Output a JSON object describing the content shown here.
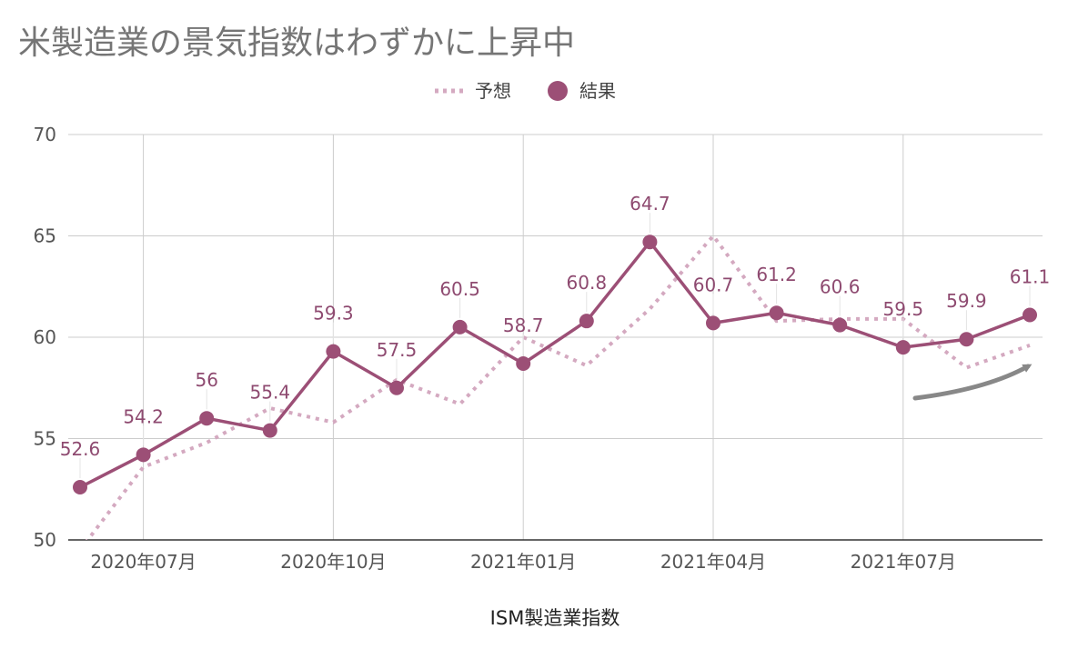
{
  "chart_data": {
    "type": "line",
    "title": "米製造業の景気指数はわずかに上昇中",
    "xlabel": "ISM製造業指数",
    "ylabel": "",
    "ylim": [
      50,
      70
    ],
    "yticks": [
      50,
      55,
      60,
      65,
      70
    ],
    "x_tick_labels": [
      "2020年07月",
      "2020年10月",
      "2021年01月",
      "2021年04月",
      "2021年07月"
    ],
    "x": [
      "2020-06",
      "2020-07",
      "2020-08",
      "2020-09",
      "2020-10",
      "2020-11",
      "2020-12",
      "2021-01",
      "2021-02",
      "2021-03",
      "2021-04",
      "2021-05",
      "2021-06",
      "2021-07",
      "2021-08",
      "2021-09"
    ],
    "grid": true,
    "legend_position": "top-center",
    "series": [
      {
        "name": "予想",
        "style": "dotted",
        "color": "#d4a9c0",
        "values": [
          49.5,
          53.6,
          54.8,
          56.5,
          55.8,
          57.9,
          56.7,
          60.0,
          58.6,
          61.4,
          65.0,
          60.8,
          60.9,
          60.9,
          58.5,
          59.6
        ]
      },
      {
        "name": "結果",
        "style": "solid-markers",
        "color": "#9c4f76",
        "values": [
          52.6,
          54.2,
          56,
          55.4,
          59.3,
          57.5,
          60.5,
          58.7,
          60.8,
          64.7,
          60.7,
          61.2,
          60.6,
          59.5,
          59.9,
          61.1
        ],
        "labels": [
          "52.6",
          "54.2",
          "56",
          "55.4",
          "59.3",
          "57.5",
          "60.5",
          "58.7",
          "60.8",
          "64.7",
          "60.7",
          "61.2",
          "60.6",
          "59.5",
          "59.9",
          "61.1"
        ]
      }
    ],
    "annotation": "gray-upward-arrow"
  }
}
